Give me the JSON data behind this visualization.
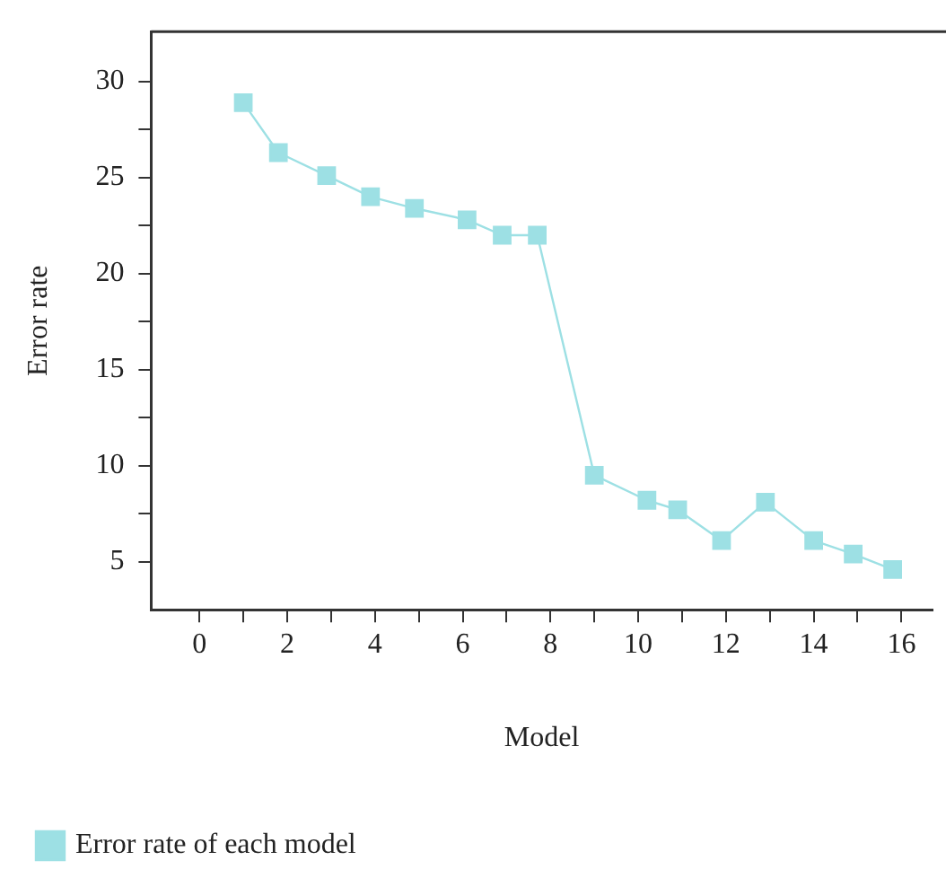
{
  "chart_data": {
    "type": "line",
    "xlabel": "Model",
    "ylabel": "Error rate",
    "series": [
      {
        "name": "Error rate of each model",
        "color": "#9de0e4",
        "x": [
          1.0,
          1.8,
          2.9,
          3.9,
          4.9,
          6.1,
          6.9,
          7.7,
          9.0,
          10.2,
          10.9,
          11.9,
          12.9,
          14.0,
          14.9,
          15.8
        ],
        "values": [
          28.9,
          26.3,
          25.1,
          24.0,
          23.4,
          22.8,
          22.0,
          22.0,
          9.5,
          8.2,
          7.7,
          6.1,
          8.1,
          6.1,
          5.4,
          4.6
        ]
      }
    ],
    "xlim": [
      -1.1,
      16.7
    ],
    "ylim": [
      2.5,
      32.6
    ],
    "xticks": [
      0,
      {
        "value": 1,
        "label": null
      },
      2,
      {
        "value": 3,
        "label": null
      },
      4,
      {
        "value": 5,
        "label": null
      },
      6,
      {
        "value": 7,
        "label": null
      },
      8,
      {
        "value": 9,
        "label": null
      },
      10,
      {
        "value": 11,
        "label": null
      },
      12,
      {
        "value": 13,
        "label": null
      },
      14,
      {
        "value": 15,
        "label": null
      },
      16
    ],
    "yticks": [
      5,
      {
        "value": 7.5,
        "label": null
      },
      10,
      {
        "value": 12.5,
        "label": null
      },
      15,
      {
        "value": 17.5,
        "label": null
      },
      20,
      {
        "value": 22.5,
        "label": null
      },
      25,
      {
        "value": 27.5,
        "label": null
      },
      30
    ],
    "grid": false,
    "legend": "bottom",
    "marker": "square",
    "line_style": "solid"
  }
}
